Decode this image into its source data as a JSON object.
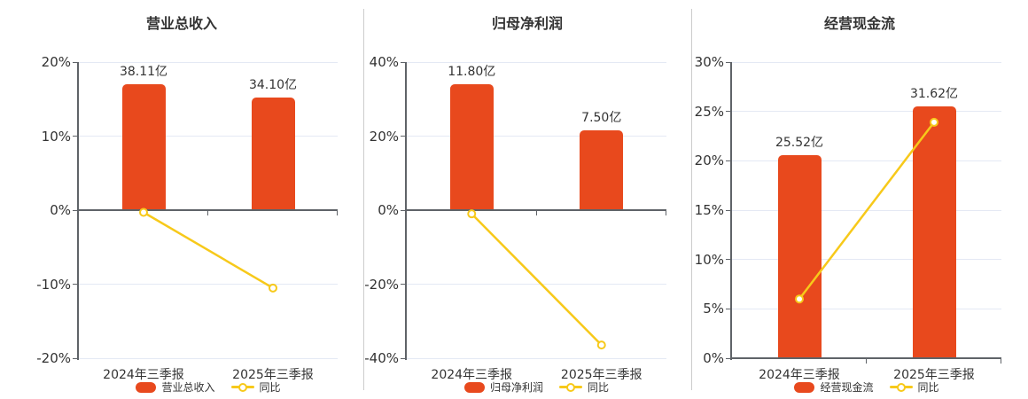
{
  "colors": {
    "bar": "#E8491D",
    "line": "#F7C91A",
    "marker_fill": "#FFFFFF",
    "grid": "#E4E9F4",
    "axis_line": "#5F6368",
    "axis_text": "#333333",
    "label_text": "#333333",
    "title_text": "#333333",
    "separator": "#CCCCCC",
    "background": "#FFFFFF"
  },
  "chart_data": [
    {
      "type": "bar+line",
      "title": "营业总收入",
      "categories": [
        "2024年三季报",
        "2025年三季报"
      ],
      "bar_series": {
        "name": "营业总收入",
        "values": [
          38.11,
          34.1
        ],
        "labels": [
          "38.11亿",
          "34.10亿"
        ]
      },
      "line_series": {
        "name": "同比",
        "values_pct": [
          -0.3,
          -10.52
        ]
      },
      "y_axis": {
        "min": -20,
        "max": 20,
        "step": 10,
        "tick_labels": [
          "20%",
          "10%",
          "0%",
          "-10%",
          "-20%"
        ]
      },
      "legend": {
        "bar_label": "营业总收入",
        "line_label": "同比"
      },
      "grid_on": true,
      "legend_position": "bottom"
    },
    {
      "type": "bar+line",
      "title": "归母净利润",
      "categories": [
        "2024年三季报",
        "2025年三季报"
      ],
      "bar_series": {
        "name": "归母净利润",
        "values": [
          11.8,
          7.5
        ],
        "labels": [
          "11.80亿",
          "7.50亿"
        ]
      },
      "line_series": {
        "name": "同比",
        "values_pct": [
          -1.0,
          -36.44
        ]
      },
      "y_axis": {
        "min": -40,
        "max": 40,
        "step": 20,
        "tick_labels": [
          "40%",
          "20%",
          "0%",
          "-20%",
          "-40%"
        ]
      },
      "legend": {
        "bar_label": "归母净利润",
        "line_label": "同比"
      },
      "grid_on": true,
      "legend_position": "bottom"
    },
    {
      "type": "bar+line",
      "title": "经营现金流",
      "categories": [
        "2024年三季报",
        "2025年三季报"
      ],
      "bar_series": {
        "name": "经营现金流",
        "values": [
          25.52,
          31.62
        ],
        "labels": [
          "25.52亿",
          "31.62亿"
        ]
      },
      "line_series": {
        "name": "同比",
        "values_pct": [
          6.0,
          23.9
        ]
      },
      "y_axis": {
        "min": 0,
        "max": 30,
        "step": 5,
        "tick_labels": [
          "30%",
          "25%",
          "20%",
          "15%",
          "10%",
          "5%",
          "0%"
        ]
      },
      "legend": {
        "bar_label": "经营现金流",
        "line_label": "同比"
      },
      "grid_on": true,
      "legend_position": "bottom"
    }
  ]
}
